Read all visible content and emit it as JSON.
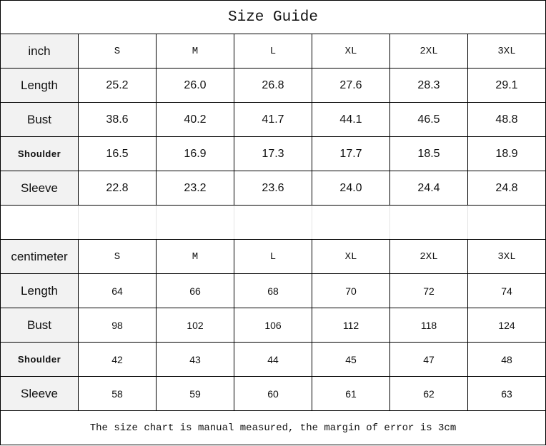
{
  "title": "Size Guide",
  "sizes": [
    "S",
    "M",
    "L",
    "XL",
    "2XL",
    "3XL"
  ],
  "inch": {
    "unit_label": "inch",
    "rows": [
      {
        "label": "Length",
        "values": [
          "25.2",
          "26.0",
          "26.8",
          "27.6",
          "28.3",
          "29.1"
        ]
      },
      {
        "label": "Bust",
        "values": [
          "38.6",
          "40.2",
          "41.7",
          "44.1",
          "46.5",
          "48.8"
        ]
      },
      {
        "label": "Shoulder",
        "values": [
          "16.5",
          "16.9",
          "17.3",
          "17.7",
          "18.5",
          "18.9"
        ]
      },
      {
        "label": "Sleeve",
        "values": [
          "22.8",
          "23.2",
          "23.6",
          "24.0",
          "24.4",
          "24.8"
        ]
      }
    ]
  },
  "centimeter": {
    "unit_label": "centimeter",
    "rows": [
      {
        "label": "Length",
        "values": [
          "64",
          "66",
          "68",
          "70",
          "72",
          "74"
        ]
      },
      {
        "label": "Bust",
        "values": [
          "98",
          "102",
          "106",
          "112",
          "118",
          "124"
        ]
      },
      {
        "label": "Shoulder",
        "values": [
          "42",
          "43",
          "44",
          "45",
          "47",
          "48"
        ]
      },
      {
        "label": "Sleeve",
        "values": [
          "58",
          "59",
          "60",
          "61",
          "62",
          "63"
        ]
      }
    ]
  },
  "footer_note": "The size chart is manual measured, the margin of error is 3cm"
}
